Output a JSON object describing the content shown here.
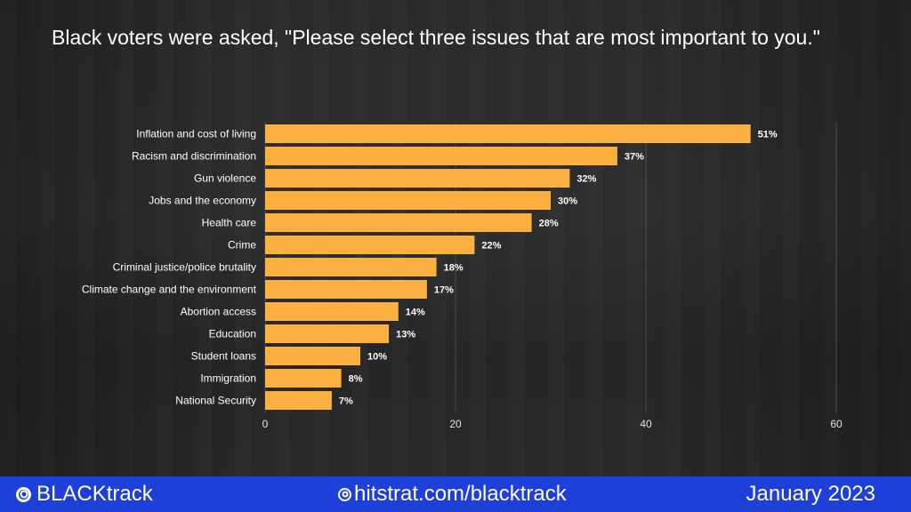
{
  "title": "Black voters were asked, \"Please select three issues that are most important to you.\"",
  "footer": {
    "brand": "BLACKtrack",
    "brand_icon": "target-icon",
    "site": "hitstrat.com/blacktrack",
    "site_icon": "target-icon",
    "date": "January 2023",
    "background_color": "#1e3fd8"
  },
  "chart_data": {
    "type": "bar",
    "orientation": "horizontal",
    "categories": [
      "Inflation and cost of living",
      "Racism and discrimination",
      "Gun violence",
      "Jobs and the economy",
      "Health care",
      "Crime",
      "Criminal justice/police brutality",
      "Climate change and the environment",
      "Abortion access",
      "Education",
      "Student loans",
      "Immigration",
      "National Security"
    ],
    "values": [
      51,
      37,
      32,
      30,
      28,
      22,
      18,
      17,
      14,
      13,
      10,
      8,
      7
    ],
    "value_labels": [
      "51%",
      "37%",
      "32%",
      "30%",
      "28%",
      "22%",
      "18%",
      "17%",
      "14%",
      "13%",
      "10%",
      "8%",
      "7%"
    ],
    "xlim": [
      0,
      60
    ],
    "xticks": [
      0,
      20,
      40,
      60
    ],
    "grid": true,
    "legend": "none",
    "bar_color": "#fbb040"
  }
}
